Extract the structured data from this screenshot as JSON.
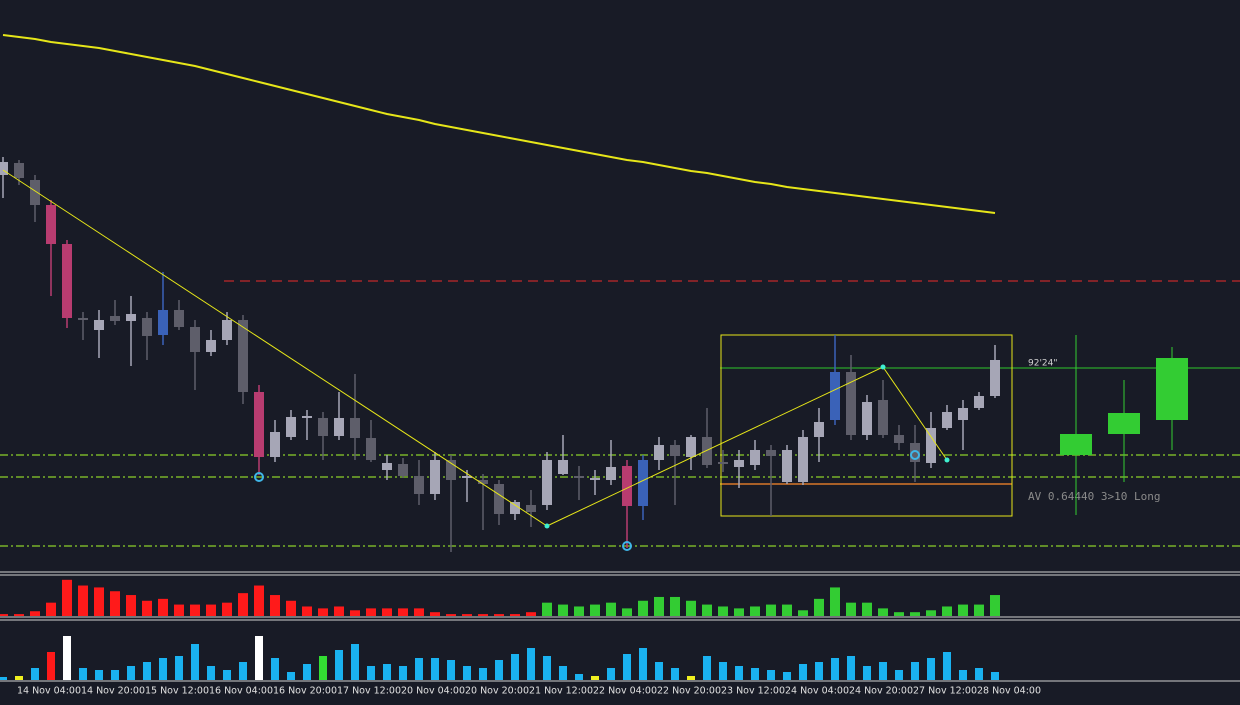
{
  "chart_data": {
    "type": "candlestick",
    "ylim": [
      0.64268,
      0.65408
    ],
    "candles": {
      "open": [
        0.65058,
        0.65082,
        0.65048,
        0.64998,
        0.6492,
        0.64772,
        0.64748,
        0.64776,
        0.64766,
        0.64772,
        0.64738,
        0.64788,
        0.64754,
        0.64704,
        0.64728,
        0.64768,
        0.64624,
        0.64494,
        0.64534,
        0.64572,
        0.64572,
        0.64536,
        0.64572,
        0.64532,
        0.64468,
        0.6448,
        0.64456,
        0.6442,
        0.64488,
        0.64452,
        0.64448,
        0.6444,
        0.6438,
        0.64398,
        0.64398,
        0.6446,
        0.64456,
        0.64448,
        0.64448,
        0.64476,
        0.64396,
        0.64488,
        0.64518,
        0.64494,
        0.64534,
        0.64484,
        0.64474,
        0.64478,
        0.64508,
        0.64444,
        0.64444,
        0.64534,
        0.64568,
        0.64664,
        0.64538,
        0.64608,
        0.64538,
        0.64522,
        0.64482,
        0.64552,
        0.64568,
        0.64592,
        0.64616
      ],
      "high": [
        0.65094,
        0.65088,
        0.65058,
        0.65008,
        0.64928,
        0.64784,
        0.64788,
        0.64808,
        0.64816,
        0.64784,
        0.64864,
        0.64808,
        0.64768,
        0.64748,
        0.64784,
        0.64778,
        0.64638,
        0.64568,
        0.64588,
        0.64588,
        0.64584,
        0.64624,
        0.6466,
        0.64568,
        0.64498,
        0.64492,
        0.64488,
        0.64504,
        0.64498,
        0.64468,
        0.6446,
        0.64448,
        0.64408,
        0.64428,
        0.64504,
        0.64538,
        0.64476,
        0.64468,
        0.64528,
        0.64488,
        0.64498,
        0.64534,
        0.64528,
        0.64538,
        0.64592,
        0.64508,
        0.64508,
        0.64528,
        0.64518,
        0.64518,
        0.64548,
        0.64592,
        0.64738,
        0.64698,
        0.64618,
        0.64648,
        0.64558,
        0.64558,
        0.64584,
        0.64598,
        0.64608,
        0.64624,
        0.64718
      ],
      "low": [
        0.65012,
        0.65038,
        0.64964,
        0.64816,
        0.64752,
        0.64728,
        0.64692,
        0.64758,
        0.64676,
        0.64688,
        0.64718,
        0.64748,
        0.64628,
        0.64696,
        0.64718,
        0.646,
        0.64458,
        0.64484,
        0.64528,
        0.64528,
        0.64488,
        0.64528,
        0.64488,
        0.64484,
        0.64448,
        0.64452,
        0.64398,
        0.64408,
        0.64304,
        0.64404,
        0.64348,
        0.64358,
        0.64368,
        0.64354,
        0.64388,
        0.64458,
        0.64408,
        0.64418,
        0.64438,
        0.64312,
        0.64368,
        0.64468,
        0.64398,
        0.64468,
        0.64472,
        0.64464,
        0.64432,
        0.64468,
        0.64376,
        0.6444,
        0.64438,
        0.64484,
        0.64558,
        0.64528,
        0.64528,
        0.64532,
        0.64508,
        0.64444,
        0.64472,
        0.64548,
        0.64508,
        0.64588,
        0.64612
      ],
      "close": [
        0.65084,
        0.65052,
        0.64998,
        0.6492,
        0.64772,
        0.64768,
        0.64768,
        0.64766,
        0.6478,
        0.64736,
        0.64788,
        0.64754,
        0.64704,
        0.64728,
        0.64768,
        0.64624,
        0.64494,
        0.64544,
        0.64574,
        0.64576,
        0.64536,
        0.64572,
        0.64532,
        0.64488,
        0.64482,
        0.64456,
        0.6442,
        0.64488,
        0.64448,
        0.64456,
        0.6444,
        0.6438,
        0.64404,
        0.64384,
        0.64488,
        0.64488,
        0.64452,
        0.64452,
        0.64474,
        0.64396,
        0.64488,
        0.64518,
        0.64496,
        0.64534,
        0.64478,
        0.6448,
        0.64488,
        0.64508,
        0.64496,
        0.64508,
        0.64534,
        0.64564,
        0.64664,
        0.64538,
        0.64604,
        0.64538,
        0.64522,
        0.64484,
        0.64552,
        0.64584,
        0.64592,
        0.64616,
        0.64688
      ],
      "up_color": "#a6a6b6",
      "down_color": "#5e5e6a",
      "highlights": [
        {
          "index": 3,
          "color": "#b83c70"
        },
        {
          "index": 4,
          "color": "#b83c70"
        },
        {
          "index": 16,
          "color": "#b83c70"
        },
        {
          "index": 39,
          "color": "#b83c70"
        },
        {
          "index": 10,
          "color": "#3a62b8"
        },
        {
          "index": 40,
          "color": "#3a62b8"
        },
        {
          "index": 52,
          "color": "#3a62b8"
        }
      ]
    },
    "moving_average": {
      "color": "#e6e619",
      "values": [
        0.65338,
        0.65334,
        0.6533,
        0.65324,
        0.6532,
        0.65316,
        0.65312,
        0.65306,
        0.653,
        0.65294,
        0.65288,
        0.65282,
        0.65276,
        0.65268,
        0.6526,
        0.65252,
        0.65244,
        0.65236,
        0.65228,
        0.6522,
        0.65212,
        0.65204,
        0.65196,
        0.65188,
        0.6518,
        0.65174,
        0.65168,
        0.6516,
        0.65154,
        0.65148,
        0.65142,
        0.65136,
        0.6513,
        0.65124,
        0.65118,
        0.65112,
        0.65106,
        0.651,
        0.65094,
        0.65088,
        0.65084,
        0.65078,
        0.65072,
        0.65066,
        0.65062,
        0.65056,
        0.6505,
        0.65044,
        0.6504,
        0.65034,
        0.6503,
        0.65026,
        0.65022,
        0.65018,
        0.65014,
        0.6501,
        0.65006,
        0.65002,
        0.64998,
        0.64994,
        0.6499,
        0.64986,
        0.64982
      ]
    },
    "zigzag": {
      "color": "#e6e619",
      "index": [
        0,
        34,
        55,
        59
      ],
      "values": [
        0.65068,
        0.64356,
        0.64674,
        0.64488
      ]
    },
    "markers": {
      "color": "#3fb6e8",
      "index": [
        16,
        39,
        57
      ],
      "values": [
        0.64454,
        0.64316,
        0.64498
      ]
    },
    "levels": [
      {
        "value": 0.64846,
        "color": "#c0282a",
        "style": "dash",
        "from": 14
      },
      {
        "value": 0.64498,
        "color": "#8ccf2a",
        "style": "dashdot",
        "from": 0
      },
      {
        "value": 0.64454,
        "color": "#8ccf2a",
        "style": "dashdot",
        "from": 0
      },
      {
        "value": 0.64316,
        "color": "#8ccf2a",
        "style": "dashdot",
        "from": 0
      },
      {
        "value": 0.64672,
        "color": "#2aa52a",
        "style": "solid",
        "from": 45
      },
      {
        "value": 0.6444,
        "color": "#ff8a2a",
        "style": "solid",
        "from": 45,
        "to": 63
      }
    ],
    "box": {
      "from": 45,
      "to": 63,
      "top": 0.64738,
      "bottom": 0.64376,
      "color": "#e6e619"
    },
    "timer_label": "92'24\"",
    "av_label": "AV  0.64440 3>10 Long",
    "preview_candles": {
      "color": "#33cc33",
      "open": [
        0.64498,
        0.6454,
        0.64568
      ],
      "high": [
        0.64738,
        0.64648,
        0.64714
      ],
      "low": [
        0.64378,
        0.64444,
        0.64508
      ],
      "close": [
        0.6454,
        0.64582,
        0.64692
      ]
    },
    "volume": {
      "ylim": [
        0,
        42
      ],
      "values": [
        2,
        2,
        5,
        14,
        38,
        32,
        30,
        26,
        22,
        16,
        18,
        12,
        12,
        12,
        14,
        24,
        32,
        22,
        16,
        10,
        8,
        10,
        6,
        8,
        8,
        8,
        8,
        4,
        2,
        2,
        2,
        2,
        2,
        4,
        14,
        12,
        10,
        12,
        14,
        8,
        16,
        20,
        20,
        16,
        12,
        10,
        8,
        10,
        12,
        12,
        6,
        18,
        30,
        14,
        14,
        8,
        4,
        4,
        6,
        10,
        12,
        12,
        22
      ],
      "colors": [
        "#ff1a1a",
        "#ff1a1a",
        "#ff1a1a",
        "#ff1a1a",
        "#ff1a1a",
        "#ff1a1a",
        "#ff1a1a",
        "#ff1a1a",
        "#ff1a1a",
        "#ff1a1a",
        "#ff1a1a",
        "#ff1a1a",
        "#ff1a1a",
        "#ff1a1a",
        "#ff1a1a",
        "#ff1a1a",
        "#ff1a1a",
        "#ff1a1a",
        "#ff1a1a",
        "#ff1a1a",
        "#ff1a1a",
        "#ff1a1a",
        "#ff1a1a",
        "#ff1a1a",
        "#ff1a1a",
        "#ff1a1a",
        "#ff1a1a",
        "#ff1a1a",
        "#ff1a1a",
        "#ff1a1a",
        "#ff1a1a",
        "#ff1a1a",
        "#ff1a1a",
        "#ff1a1a",
        "#33cc33",
        "#33cc33",
        "#33cc33",
        "#33cc33",
        "#33cc33",
        "#33cc33",
        "#33cc33",
        "#33cc33",
        "#33cc33",
        "#33cc33",
        "#33cc33",
        "#33cc33",
        "#33cc33",
        "#33cc33",
        "#33cc33",
        "#33cc33",
        "#33cc33",
        "#33cc33",
        "#33cc33",
        "#33cc33",
        "#33cc33",
        "#33cc33",
        "#33cc33",
        "#33cc33",
        "#33cc33",
        "#33cc33",
        "#33cc33",
        "#33cc33",
        "#33cc33"
      ]
    },
    "tick_volume": {
      "ylim": [
        0,
        56
      ],
      "color": "#1ab2f0",
      "values": [
        3,
        4,
        12,
        28,
        44,
        12,
        10,
        10,
        14,
        18,
        22,
        24,
        36,
        14,
        10,
        18,
        44,
        22,
        8,
        16,
        24,
        30,
        36,
        14,
        16,
        14,
        22,
        22,
        20,
        14,
        12,
        20,
        26,
        32,
        24,
        14,
        6,
        4,
        12,
        26,
        32,
        18,
        12,
        4,
        24,
        18,
        14,
        12,
        10,
        8,
        16,
        18,
        22,
        24,
        14,
        18,
        10,
        18,
        22,
        28,
        10,
        12,
        8
      ],
      "highlights": [
        {
          "index": 1,
          "color": "#f0f020"
        },
        {
          "index": 3,
          "color": "#ff1a1a"
        },
        {
          "index": 4,
          "color": "#ffffff"
        },
        {
          "index": 16,
          "color": "#ffffff"
        },
        {
          "index": 20,
          "color": "#33dd33"
        },
        {
          "index": 37,
          "color": "#f0f020"
        },
        {
          "index": 43,
          "color": "#f0f020"
        }
      ]
    },
    "time_labels": [
      {
        "index": 3,
        "label": "14 Nov 04:00"
      },
      {
        "index": 7,
        "label": "14 Nov 20:00"
      },
      {
        "index": 11,
        "label": "15 Nov 12:00"
      },
      {
        "index": 15,
        "label": "16 Nov 04:00"
      },
      {
        "index": 19,
        "label": "16 Nov 20:00"
      },
      {
        "index": 23,
        "label": "17 Nov 12:00"
      },
      {
        "index": 27,
        "label": "20 Nov 04:00"
      },
      {
        "index": 31,
        "label": "20 Nov 20:00"
      },
      {
        "index": 35,
        "label": "21 Nov 12:00"
      },
      {
        "index": 39,
        "label": "22 Nov 04:00"
      },
      {
        "index": 43,
        "label": "22 Nov 20:00"
      },
      {
        "index": 47,
        "label": "23 Nov 12:00"
      },
      {
        "index": 51,
        "label": "24 Nov 04:00"
      },
      {
        "index": 55,
        "label": "24 Nov 20:00"
      },
      {
        "index": 59,
        "label": "27 Nov 12:00"
      },
      {
        "index": 63,
        "label": "28 Nov 04:00"
      }
    ]
  }
}
